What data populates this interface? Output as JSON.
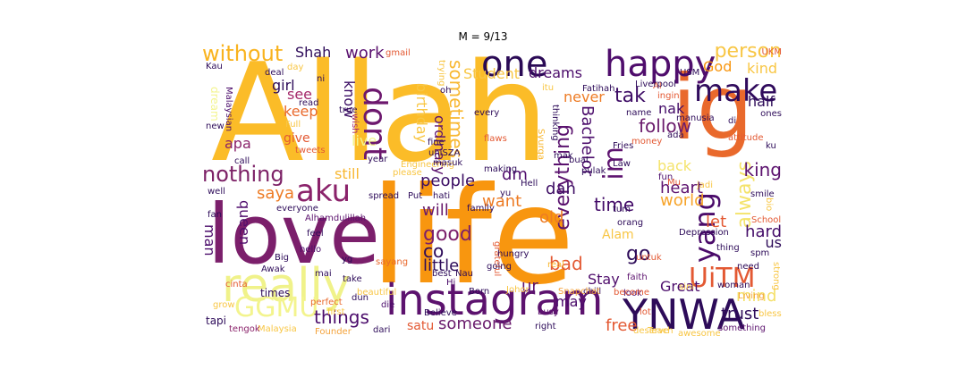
{
  "figure": {
    "title": "M = 9/13"
  },
  "wordcloud": {
    "words": [
      {
        "text": "Allah",
        "color": "#fbbc28"
      },
      {
        "text": "life",
        "color": "#f8960f"
      },
      {
        "text": "love",
        "color": "#7b1f6b"
      },
      {
        "text": "ig",
        "color": "#e9692c"
      },
      {
        "text": "instagram",
        "color": "#5c126e"
      },
      {
        "text": "really",
        "color": "#f0f28a"
      },
      {
        "text": "YNWA",
        "color": "#2d0b59"
      },
      {
        "text": "one",
        "color": "#2a0a55"
      },
      {
        "text": "happy",
        "color": "#4f0d6c"
      },
      {
        "text": "make",
        "color": "#2f0a5c"
      },
      {
        "text": "aku",
        "color": "#8a226a"
      },
      {
        "text": "dont",
        "color": "#6d186e"
      },
      {
        "text": "UiTM",
        "color": "#e35933"
      },
      {
        "text": "GGMU",
        "color": "#f3f48e"
      },
      {
        "text": "yang",
        "color": "#4a0b6a"
      },
      {
        "text": "nothing",
        "color": "#7d2267"
      },
      {
        "text": "im",
        "color": "#5e1470"
      },
      {
        "text": "without",
        "color": "#f9b31e"
      },
      {
        "text": "person",
        "color": "#f8c644"
      },
      {
        "text": "always",
        "color": "#f4e36a"
      },
      {
        "text": "heart",
        "color": "#5d126e"
      },
      {
        "text": "people",
        "color": "#3a0c63"
      },
      {
        "text": "follow",
        "color": "#6a1b6c"
      },
      {
        "text": "tak",
        "color": "#3d0c65"
      },
      {
        "text": "Shah",
        "color": "#2d0b59"
      },
      {
        "text": "work",
        "color": "#5a116f"
      },
      {
        "text": "sometimes",
        "color": "#f8b730"
      },
      {
        "text": "everything",
        "color": "#5a126e"
      },
      {
        "text": "Bachelor",
        "color": "#4b0c6b"
      },
      {
        "text": "dm",
        "color": "#500d6d"
      },
      {
        "text": "dah",
        "color": "#3c0c63"
      },
      {
        "text": "good",
        "color": "#7b1f6b"
      },
      {
        "text": "time",
        "color": "#430b68"
      },
      {
        "text": "world",
        "color": "#f7a42a"
      },
      {
        "text": "king",
        "color": "#5c126e"
      },
      {
        "text": "hard",
        "color": "#430b68"
      },
      {
        "text": "trust",
        "color": "#2d0b59"
      },
      {
        "text": "mind",
        "color": "#f4e06a"
      },
      {
        "text": "things",
        "color": "#4b0c6b"
      },
      {
        "text": "someone",
        "color": "#6a1b6c"
      },
      {
        "text": "satu",
        "color": "#e35933"
      },
      {
        "text": "free",
        "color": "#e35933"
      },
      {
        "text": "Stay",
        "color": "#4f0d6c"
      },
      {
        "text": "Great",
        "color": "#4b0c6b"
      },
      {
        "text": "little",
        "color": "#2d0b59"
      },
      {
        "text": "bad",
        "color": "#e35933"
      },
      {
        "text": "ur",
        "color": "#5c126e"
      },
      {
        "text": "may",
        "color": "#4b0c6b"
      },
      {
        "text": "go",
        "color": "#2d0b59"
      },
      {
        "text": "co",
        "color": "#2d0b59"
      },
      {
        "text": "will",
        "color": "#6a1b6c"
      },
      {
        "text": "want",
        "color": "#ed7b24"
      },
      {
        "text": "old",
        "color": "#ed7b24"
      },
      {
        "text": "Alam",
        "color": "#f8c644"
      },
      {
        "text": "let",
        "color": "#e35933"
      },
      {
        "text": "us",
        "color": "#2d0b59"
      },
      {
        "text": "queen",
        "color": "#4f0d6c"
      },
      {
        "text": "man",
        "color": "#4b0c6b"
      },
      {
        "text": "saya",
        "color": "#ed7b24"
      },
      {
        "text": "still",
        "color": "#f8b730"
      },
      {
        "text": "apa",
        "color": "#8a226a"
      },
      {
        "text": "give",
        "color": "#e35933"
      },
      {
        "text": "keep",
        "color": "#e9692c"
      },
      {
        "text": "see",
        "color": "#a4296a"
      },
      {
        "text": "girl",
        "color": "#2d0b59"
      },
      {
        "text": "know",
        "color": "#3a0c63"
      },
      {
        "text": "live",
        "color": "#f3f48e"
      },
      {
        "text": "birthday",
        "color": "#f8c644"
      },
      {
        "text": "ordinary",
        "color": "#5c126e"
      },
      {
        "text": "Student",
        "color": "#f8c644"
      },
      {
        "text": "dreams",
        "color": "#4b0c6b"
      },
      {
        "text": "never",
        "color": "#ed7b24"
      },
      {
        "text": "God",
        "color": "#f8960f"
      },
      {
        "text": "kind",
        "color": "#f8c644"
      },
      {
        "text": "nak",
        "color": "#430b68"
      },
      {
        "text": "half",
        "color": "#2d0b59"
      },
      {
        "text": "back",
        "color": "#f4e36a"
      },
      {
        "text": "dream",
        "color": "#f3f48e"
      },
      {
        "text": "tapi",
        "color": "#2d0b59"
      },
      {
        "text": "times",
        "color": "#2d0b59"
      },
      {
        "text": "Malaysia",
        "color": "#f8c644"
      },
      {
        "text": "tengok",
        "color": "#8a226a"
      },
      {
        "text": "Founder",
        "color": "#f4a23a"
      },
      {
        "text": "perfect",
        "color": "#e9692c"
      },
      {
        "text": "die",
        "color": "#4b0c6b"
      },
      {
        "text": "dari",
        "color": "#2d0b59"
      },
      {
        "text": "right",
        "color": "#2d0b59"
      },
      {
        "text": "something",
        "color": "#5c126e"
      },
      {
        "text": "Believe",
        "color": "#2d0b59"
      },
      {
        "text": "Born",
        "color": "#2d0b59"
      },
      {
        "text": "Johor",
        "color": "#f8c644"
      },
      {
        "text": "busy",
        "color": "#5c126e"
      },
      {
        "text": "chill",
        "color": "#2d0b59"
      },
      {
        "text": "look",
        "color": "#4b0c6b"
      },
      {
        "text": "lot",
        "color": "#e35933"
      },
      {
        "text": "deserve",
        "color": "#f8c644"
      },
      {
        "text": "Awak",
        "color": "#2d0b59"
      },
      {
        "text": "cinta",
        "color": "#e35933"
      },
      {
        "text": "grow",
        "color": "#f8c644"
      },
      {
        "text": "Big",
        "color": "#2d0b59"
      },
      {
        "text": "feel",
        "color": "#2d0b59"
      },
      {
        "text": "hello",
        "color": "#4b0c6b"
      },
      {
        "text": "mai",
        "color": "#2d0b59"
      },
      {
        "text": "take",
        "color": "#2d0b59"
      },
      {
        "text": "dun",
        "color": "#2d0b59"
      },
      {
        "text": "beautiful",
        "color": "#f8c644"
      },
      {
        "text": "sayang",
        "color": "#e9692c"
      },
      {
        "text": "grateful",
        "color": "#e35933"
      },
      {
        "text": "going",
        "color": "#2d0b59"
      },
      {
        "text": "real",
        "color": "#f8b730"
      },
      {
        "text": "Snapchat",
        "color": "#f4a23a"
      },
      {
        "text": "best",
        "color": "#2d0b59"
      },
      {
        "text": "Nau",
        "color": "#2d0b59"
      },
      {
        "text": "hungry",
        "color": "#2d0b59"
      },
      {
        "text": "Hi",
        "color": "#4b0c6b"
      },
      {
        "text": "become",
        "color": "#e35933"
      },
      {
        "text": "faith",
        "color": "#5c126e"
      },
      {
        "text": "untuk",
        "color": "#e35933"
      },
      {
        "text": "woman",
        "color": "#2d0b59"
      },
      {
        "text": "thing",
        "color": "#2d0b59"
      },
      {
        "text": "need",
        "color": "#2d0b59"
      },
      {
        "text": "spm",
        "color": "#2d0b59"
      },
      {
        "text": "Living",
        "color": "#f4a23a"
      },
      {
        "text": "strong",
        "color": "#f8c644"
      },
      {
        "text": "bless",
        "color": "#f8c644"
      },
      {
        "text": "School",
        "color": "#e35933"
      },
      {
        "text": "smile",
        "color": "#2d0b59"
      },
      {
        "text": "Depression",
        "color": "#2d0b59"
      },
      {
        "text": "orang",
        "color": "#2d0b59"
      },
      {
        "text": "bio",
        "color": "#f8c644"
      },
      {
        "text": "tum",
        "color": "#2d0b59"
      },
      {
        "text": "fun",
        "color": "#4b0c6b"
      },
      {
        "text": "Mu",
        "color": "#e35933"
      },
      {
        "text": "jadi",
        "color": "#f8c644"
      },
      {
        "text": "Law",
        "color": "#2d0b59"
      },
      {
        "text": "mak",
        "color": "#2d0b59"
      },
      {
        "text": "buat",
        "color": "#2d0b59"
      },
      {
        "text": "pulak",
        "color": "#2d0b59"
      },
      {
        "text": "Fries",
        "color": "#2d0b59"
      },
      {
        "text": "money",
        "color": "#e35933"
      },
      {
        "text": "attitude",
        "color": "#e35933"
      },
      {
        "text": "ku",
        "color": "#2d0b59"
      },
      {
        "text": "ada",
        "color": "#2d0b59"
      },
      {
        "text": "ones",
        "color": "#2d0b59"
      },
      {
        "text": "di",
        "color": "#2d0b59"
      },
      {
        "text": "manusia",
        "color": "#2d0b59"
      },
      {
        "text": "name",
        "color": "#2d0b59"
      },
      {
        "text": "ingin",
        "color": "#e35933"
      },
      {
        "text": "Al",
        "color": "#e35933"
      },
      {
        "text": "Fatihah",
        "color": "#2d0b59"
      },
      {
        "text": "itu",
        "color": "#f8c644"
      },
      {
        "text": "Liverpool",
        "color": "#2d0b59"
      },
      {
        "text": "USM",
        "color": "#2d0b59"
      },
      {
        "text": "UKM",
        "color": "#e35933"
      },
      {
        "text": "Kau",
        "color": "#2d0b59"
      },
      {
        "text": "ni",
        "color": "#2d0b59"
      },
      {
        "text": "deal",
        "color": "#2d0b59"
      },
      {
        "text": "day",
        "color": "#f8c644"
      },
      {
        "text": "gmail",
        "color": "#e35933"
      },
      {
        "text": "Malaysian",
        "color": "#4b0c6b"
      },
      {
        "text": "read",
        "color": "#2d0b59"
      },
      {
        "text": "true",
        "color": "#2d0b59"
      },
      {
        "text": "wish",
        "color": "#a4296a"
      },
      {
        "text": "Full",
        "color": "#f8c644"
      },
      {
        "text": "new",
        "color": "#2d0b59"
      },
      {
        "text": "call",
        "color": "#2d0b59"
      },
      {
        "text": "tweets",
        "color": "#e35933"
      },
      {
        "text": "year",
        "color": "#2d0b59"
      },
      {
        "text": "Engineering",
        "color": "#f8c644"
      },
      {
        "text": "please",
        "color": "#f8c644"
      },
      {
        "text": "masuk",
        "color": "#2d0b59"
      },
      {
        "text": "making",
        "color": "#2d0b59"
      },
      {
        "text": "fine",
        "color": "#2d0b59"
      },
      {
        "text": "uniSZA",
        "color": "#2d0b59"
      },
      {
        "text": "every",
        "color": "#2d0b59"
      },
      {
        "text": "flaws",
        "color": "#e35933"
      },
      {
        "text": "Syurga",
        "color": "#f8b730"
      },
      {
        "text": "thinking",
        "color": "#2d0b59"
      },
      {
        "text": "trying",
        "color": "#f8c644"
      },
      {
        "text": "oh",
        "color": "#2d0b59"
      },
      {
        "text": "everyone",
        "color": "#2d0b59"
      },
      {
        "text": "Alhamdulillah",
        "color": "#5c126e"
      },
      {
        "text": "spread",
        "color": "#2d0b59"
      },
      {
        "text": "well",
        "color": "#2d0b59"
      },
      {
        "text": "fan",
        "color": "#2d0b59"
      },
      {
        "text": "Put",
        "color": "#2d0b59"
      },
      {
        "text": "hati",
        "color": "#2d0b59"
      },
      {
        "text": "family",
        "color": "#2d0b59"
      },
      {
        "text": "yu",
        "color": "#2d0b59"
      },
      {
        "text": "Hell",
        "color": "#2d0b59"
      },
      {
        "text": "sini",
        "color": "#f8c644"
      },
      {
        "text": "Teach",
        "color": "#f8c644"
      },
      {
        "text": "awesome",
        "color": "#f8c644"
      },
      {
        "text": "yg",
        "color": "#2d0b59"
      },
      {
        "text": "first",
        "color": "#f8c644"
      }
    ]
  }
}
